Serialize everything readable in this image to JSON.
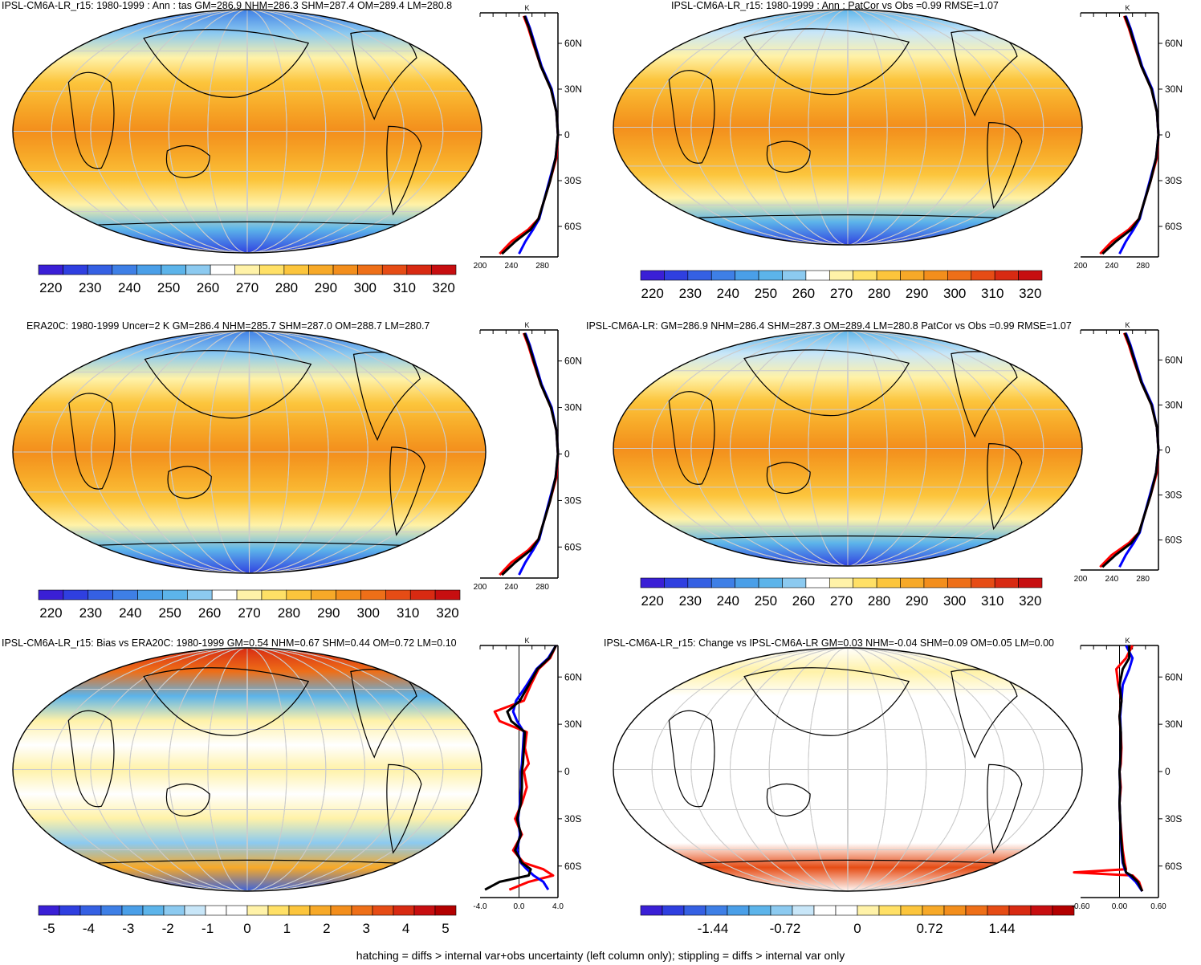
{
  "footer": "hatching = diffs > internal var+obs uncertainty (left column only); stippling = diffs > internal var only",
  "palettes": {
    "abs": [
      "#3a1fd6",
      "#2f3fe0",
      "#3560e3",
      "#3e7fe6",
      "#4a9fe8",
      "#5cb4ea",
      "#8ccaf0",
      "#ffffff",
      "#fff2a8",
      "#ffe066",
      "#fcc53c",
      "#f7a928",
      "#f38e1c",
      "#ee6f18",
      "#e64c15",
      "#d82a12",
      "#c70e10"
    ],
    "bias": [
      "#3a1fd6",
      "#2f3fe0",
      "#3560e3",
      "#3e7fe6",
      "#4a9fe8",
      "#5cb4ea",
      "#8ccaf0",
      "#c8e6f8",
      "#ffffff",
      "#ffffff",
      "#fff2a8",
      "#ffe066",
      "#fcc53c",
      "#f7a928",
      "#f38e1c",
      "#ee6f18",
      "#e64c15",
      "#d82a12",
      "#c70e10",
      "#b30000"
    ]
  },
  "panels": [
    {
      "id": "model-mean",
      "title": "IPSL-CM6A-LR_r15: 1980-1999 : Ann : tas GM=286.9 NHM=286.3 SHM=287.4 OM=289.4 LM=280.8",
      "colorbar_labels": [
        "220",
        "230",
        "240",
        "250",
        "260",
        "270",
        "280",
        "290",
        "300",
        "310",
        "320"
      ],
      "profile_unit": "K",
      "profile_x_ticks": [
        "200",
        "240",
        "280"
      ],
      "profile_lat_labels": [
        "60N",
        "30N",
        "0",
        "30S",
        "60S"
      ]
    },
    {
      "id": "ensemble-mean",
      "title": "IPSL-CM6A-LR_r15: 1980-1999 : Ann : PatCor vs Obs =0.99 RMSE=1.07",
      "colorbar_labels": [
        "220",
        "230",
        "240",
        "250",
        "260",
        "270",
        "280",
        "290",
        "300",
        "310",
        "320"
      ],
      "profile_unit": "K",
      "profile_x_ticks": [
        "200",
        "240",
        "280"
      ],
      "profile_lat_labels": [
        "60N",
        "30N",
        "0",
        "30S",
        "60S"
      ]
    },
    {
      "id": "obs",
      "title": "ERA20C: 1980-1999 Uncer=2 K GM=286.4 NHM=285.7 SHM=287.0 OM=288.7 LM=280.7",
      "colorbar_labels": [
        "220",
        "230",
        "240",
        "250",
        "260",
        "270",
        "280",
        "290",
        "300",
        "310",
        "320"
      ],
      "profile_unit": "K",
      "profile_x_ticks": [
        "200",
        "240",
        "280"
      ],
      "profile_lat_labels": [
        "60N",
        "30N",
        "0",
        "30S",
        "60S"
      ]
    },
    {
      "id": "ensemble-summary",
      "title": "IPSL-CM6A-LR: GM=286.9 NHM=286.4 SHM=287.3 OM=289.4 LM=280.8 PatCor vs Obs =0.99 RMSE=1.07",
      "colorbar_labels": [
        "220",
        "230",
        "240",
        "250",
        "260",
        "270",
        "280",
        "290",
        "300",
        "310",
        "320"
      ],
      "profile_unit": "K",
      "profile_x_ticks": [
        "200",
        "240",
        "280"
      ],
      "profile_lat_labels": [
        "60N",
        "30N",
        "0",
        "30S",
        "60S"
      ]
    },
    {
      "id": "bias",
      "title": "IPSL-CM6A-LR_r15: Bias vs ERA20C: 1980-1999 GM=0.54 NHM=0.67 SHM=0.44 OM=0.72 LM=0.10",
      "colorbar_labels": [
        "-5",
        "-4",
        "-3",
        "-2",
        "-1",
        "0",
        "1",
        "2",
        "3",
        "4",
        "5"
      ],
      "profile_unit": "K",
      "profile_x_ticks": [
        "-4.0",
        "0.0",
        "4.0"
      ],
      "profile_lat_labels": [
        "60N",
        "30N",
        "0",
        "30S",
        "60S"
      ]
    },
    {
      "id": "change",
      "title": "IPSL-CM6A-LR_r15: Change vs IPSL-CM6A-LR GM=0.03 NHM=-0.04 SHM=0.09 OM=0.05 LM=0.00",
      "colorbar_labels": [
        "-1.44",
        "-0.72",
        "0",
        "0.72",
        "1.44"
      ],
      "profile_unit": "K",
      "profile_x_ticks": [
        "-0.60",
        "0.00",
        "0.60"
      ],
      "profile_lat_labels": [
        "60N",
        "30N",
        "0",
        "30S",
        "60S"
      ]
    }
  ],
  "chart_data": [
    {
      "type": "line",
      "panel": "model-mean",
      "x_label": "K",
      "xlim": [
        200,
        300
      ],
      "y_label_ticks": [
        "60N",
        "30N",
        "0",
        "30S",
        "60S"
      ],
      "series": [
        {
          "color": "#ff0000",
          "lat": [
            78,
            70,
            60,
            45,
            30,
            15,
            0,
            -15,
            -30,
            -45,
            -55,
            -62,
            -70,
            -78
          ],
          "values": [
            256,
            262,
            268,
            278,
            291,
            298,
            300,
            298,
            290,
            281,
            275,
            262,
            240,
            225
          ]
        },
        {
          "color": "#0000ff",
          "lat": [
            78,
            70,
            60,
            45,
            30,
            15,
            0,
            -15,
            -30,
            -45,
            -55,
            -62,
            -70,
            -78
          ],
          "values": [
            258,
            264,
            270,
            279,
            292,
            298,
            300,
            297,
            289,
            281,
            276,
            268,
            258,
            250
          ]
        },
        {
          "color": "#000000",
          "lat": [
            78,
            70,
            60,
            45,
            30,
            15,
            0,
            -15,
            -30,
            -45,
            -55,
            -62,
            -70,
            -78
          ],
          "values": [
            257,
            263,
            269,
            278,
            291,
            298,
            300,
            297,
            290,
            281,
            275,
            265,
            245,
            228
          ]
        }
      ]
    },
    {
      "type": "line",
      "panel": "ensemble-mean",
      "x_label": "K",
      "xlim": [
        200,
        300
      ],
      "y_label_ticks": [
        "60N",
        "30N",
        "0",
        "30S",
        "60S"
      ],
      "series": [
        {
          "color": "#ff0000",
          "lat": [
            78,
            70,
            60,
            45,
            30,
            15,
            0,
            -15,
            -30,
            -45,
            -55,
            -62,
            -70,
            -78
          ],
          "values": [
            256,
            262,
            268,
            278,
            291,
            298,
            300,
            298,
            290,
            281,
            275,
            262,
            240,
            225
          ]
        },
        {
          "color": "#0000ff",
          "lat": [
            78,
            70,
            60,
            45,
            30,
            15,
            0,
            -15,
            -30,
            -45,
            -55,
            -62,
            -70,
            -78
          ],
          "values": [
            258,
            264,
            270,
            279,
            292,
            298,
            300,
            297,
            289,
            281,
            276,
            268,
            258,
            250
          ]
        },
        {
          "color": "#000000",
          "lat": [
            78,
            70,
            60,
            45,
            30,
            15,
            0,
            -15,
            -30,
            -45,
            -55,
            -62,
            -70,
            -78
          ],
          "values": [
            257,
            263,
            269,
            278,
            291,
            298,
            300,
            297,
            290,
            281,
            275,
            265,
            245,
            228
          ]
        }
      ]
    },
    {
      "type": "line",
      "panel": "obs",
      "x_label": "K",
      "xlim": [
        200,
        300
      ],
      "y_label_ticks": [
        "60N",
        "30N",
        "0",
        "30S",
        "60S"
      ],
      "series": [
        {
          "color": "#ff0000",
          "lat": [
            78,
            70,
            60,
            45,
            30,
            15,
            0,
            -15,
            -30,
            -45,
            -55,
            -62,
            -70,
            -78
          ],
          "values": [
            256,
            262,
            268,
            278,
            291,
            298,
            300,
            298,
            290,
            281,
            275,
            262,
            240,
            225
          ]
        },
        {
          "color": "#0000ff",
          "lat": [
            78,
            70,
            60,
            45,
            30,
            15,
            0,
            -15,
            -30,
            -45,
            -55,
            -62,
            -70,
            -78
          ],
          "values": [
            258,
            264,
            270,
            279,
            292,
            298,
            300,
            297,
            289,
            281,
            276,
            268,
            258,
            250
          ]
        },
        {
          "color": "#000000",
          "lat": [
            78,
            70,
            60,
            45,
            30,
            15,
            0,
            -15,
            -30,
            -45,
            -55,
            -62,
            -70,
            -78
          ],
          "values": [
            257,
            263,
            269,
            278,
            291,
            298,
            300,
            297,
            290,
            281,
            275,
            265,
            245,
            228
          ]
        }
      ]
    },
    {
      "type": "line",
      "panel": "ensemble-summary",
      "x_label": "K",
      "xlim": [
        200,
        300
      ],
      "y_label_ticks": [
        "60N",
        "30N",
        "0",
        "30S",
        "60S"
      ],
      "series": [
        {
          "color": "#ff0000",
          "lat": [
            78,
            70,
            60,
            45,
            30,
            15,
            0,
            -15,
            -30,
            -45,
            -55,
            -62,
            -70,
            -78
          ],
          "values": [
            256,
            262,
            268,
            278,
            291,
            298,
            300,
            298,
            290,
            281,
            275,
            262,
            240,
            225
          ]
        },
        {
          "color": "#0000ff",
          "lat": [
            78,
            70,
            60,
            45,
            30,
            15,
            0,
            -15,
            -30,
            -45,
            -55,
            -62,
            -70,
            -78
          ],
          "values": [
            258,
            264,
            270,
            279,
            292,
            298,
            300,
            297,
            289,
            281,
            276,
            268,
            258,
            250
          ]
        },
        {
          "color": "#000000",
          "lat": [
            78,
            70,
            60,
            45,
            30,
            15,
            0,
            -15,
            -30,
            -45,
            -55,
            -62,
            -70,
            -78
          ],
          "values": [
            257,
            263,
            269,
            278,
            291,
            298,
            300,
            297,
            290,
            281,
            275,
            265,
            245,
            228
          ]
        }
      ]
    },
    {
      "type": "line",
      "panel": "bias",
      "x_label": "K",
      "xlim": [
        -4,
        4
      ],
      "y_label_ticks": [
        "60N",
        "30N",
        "0",
        "30S",
        "60S"
      ],
      "series": [
        {
          "color": "#ff0000",
          "lat": [
            80,
            72,
            65,
            55,
            45,
            38,
            32,
            25,
            15,
            5,
            0,
            -10,
            -20,
            -30,
            -40,
            -50,
            -58,
            -62,
            -66,
            -70,
            -75
          ],
          "values": [
            3.8,
            3.2,
            2.0,
            1.2,
            0.5,
            -2.5,
            -2.0,
            0.8,
            0.6,
            1.0,
            0.5,
            0.8,
            0.3,
            -0.4,
            0.3,
            -0.6,
            0.5,
            2.5,
            3.5,
            1.0,
            -1.0
          ]
        },
        {
          "color": "#0000ff",
          "lat": [
            80,
            72,
            65,
            55,
            45,
            38,
            32,
            25,
            15,
            5,
            0,
            -10,
            -20,
            -30,
            -40,
            -50,
            -58,
            -62,
            -66,
            -70,
            -75
          ],
          "values": [
            3.8,
            3.0,
            1.8,
            0.8,
            -0.3,
            -0.6,
            -0.2,
            0.5,
            0.4,
            0.3,
            0.2,
            0.2,
            0.1,
            -0.1,
            0.1,
            -0.2,
            0.2,
            0.8,
            1.5,
            2.5,
            3.0
          ]
        },
        {
          "color": "#000000",
          "lat": [
            80,
            72,
            65,
            55,
            45,
            38,
            32,
            25,
            15,
            5,
            0,
            -10,
            -20,
            -30,
            -40,
            -50,
            -58,
            -62,
            -66,
            -70,
            -75
          ],
          "values": [
            3.8,
            3.1,
            1.9,
            1.0,
            0.1,
            -1.2,
            -0.8,
            0.6,
            0.5,
            0.4,
            0.3,
            0.3,
            0.2,
            -0.2,
            0.2,
            -0.4,
            0.3,
            1.2,
            1.0,
            -2.0,
            -3.5
          ]
        }
      ]
    },
    {
      "type": "line",
      "panel": "change",
      "x_label": "K",
      "xlim": [
        -0.6,
        0.6
      ],
      "y_label_ticks": [
        "60N",
        "30N",
        "0",
        "30S",
        "60S"
      ],
      "series": [
        {
          "color": "#ff0000",
          "lat": [
            80,
            72,
            65,
            55,
            45,
            35,
            25,
            15,
            5,
            0,
            -10,
            -20,
            -30,
            -40,
            -50,
            -58,
            -62,
            -64,
            -66,
            -70,
            -76
          ],
          "values": [
            0.2,
            0.1,
            -0.05,
            -0.02,
            0.03,
            0.0,
            0.02,
            0.03,
            0.02,
            0.0,
            0.02,
            0.0,
            0.01,
            0.03,
            0.05,
            0.08,
            0.1,
            -0.7,
            0.2,
            0.3,
            0.35
          ]
        },
        {
          "color": "#0000ff",
          "lat": [
            80,
            72,
            65,
            55,
            45,
            35,
            25,
            15,
            5,
            0,
            -10,
            -20,
            -30,
            -40,
            -50,
            -58,
            -62,
            -64,
            -66,
            -70,
            -76
          ],
          "values": [
            0.1,
            0.2,
            0.15,
            0.05,
            0.03,
            0.01,
            0.02,
            0.02,
            0.01,
            0.0,
            0.01,
            0.0,
            0.01,
            0.02,
            0.03,
            0.05,
            0.08,
            0.1,
            0.15,
            0.25,
            0.35
          ]
        },
        {
          "color": "#000000",
          "lat": [
            80,
            72,
            65,
            55,
            45,
            35,
            25,
            15,
            5,
            0,
            -10,
            -20,
            -30,
            -40,
            -50,
            -58,
            -62,
            -64,
            -66,
            -70,
            -76
          ],
          "values": [
            0.15,
            0.15,
            0.05,
            0.0,
            0.03,
            0.0,
            0.02,
            0.02,
            0.01,
            0.0,
            0.01,
            0.0,
            0.01,
            0.02,
            0.04,
            0.06,
            0.09,
            0.1,
            0.18,
            0.28,
            0.35
          ]
        }
      ]
    }
  ]
}
